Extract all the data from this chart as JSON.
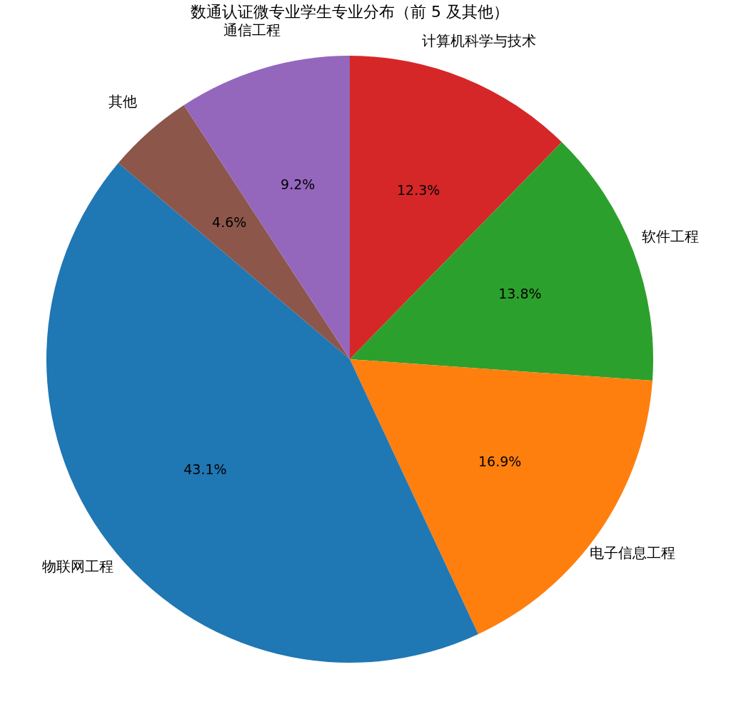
{
  "chart_data": {
    "type": "pie",
    "title": "数通认证微专业学生专业分布（前 5 及其他）",
    "categories": [
      "计算机科学与技术",
      "软件工程",
      "电子信息工程",
      "物联网工程",
      "其他",
      "通信工程"
    ],
    "values": [
      12.3,
      13.8,
      16.9,
      43.1,
      4.6,
      9.2
    ],
    "colors": [
      "#d62728",
      "#2ca02c",
      "#ff7f0e",
      "#1f77b4",
      "#8c564b",
      "#9467bd"
    ],
    "value_labels": [
      "12.3%",
      "13.8%",
      "16.9%",
      "43.1%",
      "4.6%",
      "9.2%"
    ],
    "legend": false
  }
}
